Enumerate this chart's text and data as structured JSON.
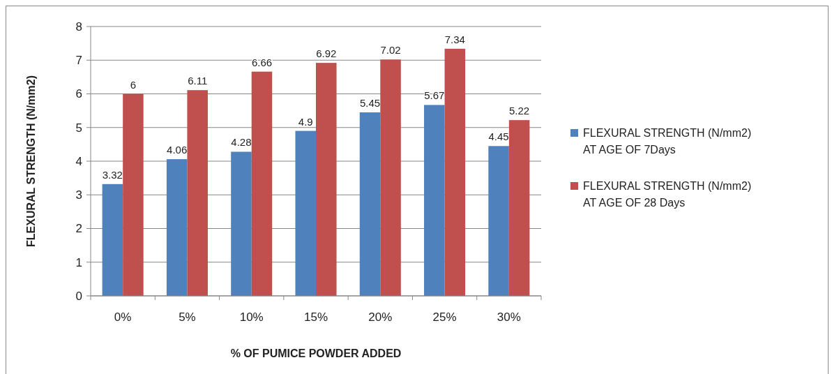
{
  "chart_data": {
    "type": "bar",
    "xlabel": "% OF PUMICE POWDER ADDED",
    "ylabel": "FLEXURAL STRENGTH (N/mm2)",
    "categories": [
      "0%",
      "5%",
      "10%",
      "15%",
      "20%",
      "25%",
      "30%"
    ],
    "series": [
      {
        "name": "FLEXURAL STRENGTH (N/mm2) AT AGE OF 7Days",
        "color": "#4f81bd",
        "values": [
          3.32,
          4.06,
          4.28,
          4.9,
          5.45,
          5.67,
          4.45
        ]
      },
      {
        "name": "FLEXURAL STRENGTH (N/mm2) AT AGE OF 28 Days",
        "color": "#c0504d",
        "values": [
          6,
          6.11,
          6.66,
          6.92,
          7.02,
          7.34,
          5.22
        ]
      }
    ],
    "ylim": [
      0,
      8
    ],
    "yticks": [
      0,
      1,
      2,
      3,
      4,
      5,
      6,
      7,
      8
    ],
    "grid": "y",
    "legend": "right",
    "data_labels": true
  }
}
